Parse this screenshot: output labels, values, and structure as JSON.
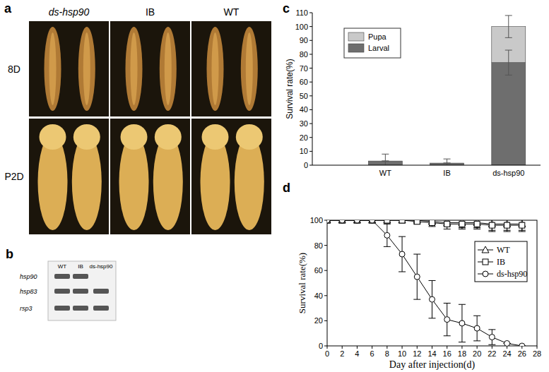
{
  "photo_panel": {
    "label": "a",
    "columns": [
      "ds-hsp90",
      "IB",
      "WT"
    ],
    "rows": [
      "8D",
      "P2D"
    ]
  },
  "gel_panel": {
    "label": "b",
    "lanes": [
      "WT",
      "IB",
      "ds-hsp90"
    ],
    "genes": [
      "hsp90",
      "hsp83",
      "rsp3"
    ],
    "bands": [
      [
        true,
        true,
        false
      ],
      [
        true,
        true,
        true
      ],
      [
        true,
        true,
        true
      ]
    ]
  },
  "chart_data": [
    {
      "type": "bar",
      "title": "c",
      "stacked": true,
      "categories": [
        "WT",
        "IB",
        "ds-hsp90"
      ],
      "series": [
        {
          "name": "Larval",
          "color": "#6e6e6e",
          "values": [
            3,
            1.5,
            74
          ],
          "errors": [
            5,
            3,
            9
          ]
        },
        {
          "name": "Pupa",
          "color": "#c9c9c9",
          "values": [
            0,
            0,
            26
          ],
          "errors": [
            0,
            0,
            8
          ]
        }
      ],
      "y_label": "Survival rate(%)",
      "ylim": [
        0,
        110
      ],
      "yticks": [
        0,
        10,
        20,
        30,
        40,
        50,
        60,
        70,
        80,
        90,
        100,
        110
      ],
      "legend": "upper left"
    },
    {
      "type": "line",
      "title": "d",
      "x": [
        0,
        2,
        4,
        6,
        8,
        10,
        12,
        14,
        16,
        18,
        20,
        22,
        24,
        26
      ],
      "series": [
        {
          "name": "WT",
          "color": "#000000",
          "marker": "triangle",
          "values": [
            100,
            100,
            100,
            100,
            100,
            100,
            100,
            99,
            98,
            98,
            98,
            97,
            97,
            97
          ],
          "errors": [
            0,
            0,
            0,
            0,
            0,
            0,
            0,
            2,
            3,
            4,
            4,
            5,
            5,
            5
          ]
        },
        {
          "name": "IB",
          "color": "#000000",
          "marker": "square",
          "values": [
            100,
            100,
            100,
            100,
            100,
            100,
            99,
            98,
            97,
            97,
            97,
            96,
            96,
            96
          ],
          "errors": [
            0,
            0,
            0,
            0,
            0,
            0,
            2,
            3,
            4,
            4,
            4,
            5,
            5,
            5
          ]
        },
        {
          "name": "ds-hsp90",
          "color": "#000000",
          "marker": "circle",
          "values": [
            100,
            100,
            100,
            100,
            88,
            73,
            55,
            37,
            21,
            18,
            14,
            7,
            2,
            0
          ],
          "errors": [
            0,
            0,
            0,
            0,
            9,
            14,
            18,
            15,
            13,
            15,
            10,
            6,
            0,
            0
          ]
        }
      ],
      "x_label": "Day after injection(d)",
      "y_label": "Survival rate(%)",
      "xlim": [
        0,
        28
      ],
      "xticks": [
        0,
        2,
        4,
        6,
        8,
        10,
        12,
        14,
        16,
        18,
        20,
        22,
        24,
        26,
        28
      ],
      "ylim": [
        0,
        100
      ],
      "yticks": [
        0,
        20,
        40,
        60,
        80,
        100
      ],
      "legend": "right"
    }
  ]
}
